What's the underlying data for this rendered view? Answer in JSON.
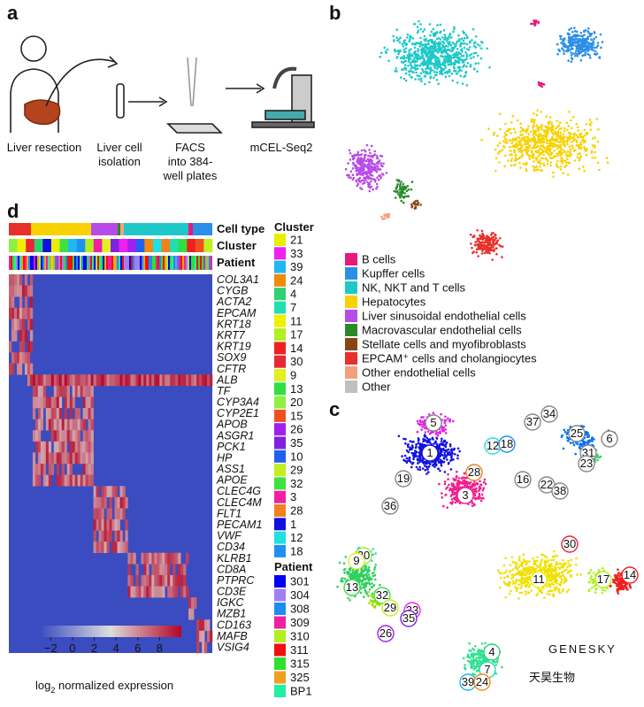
{
  "panels": {
    "a": "a",
    "b": "b",
    "c": "c",
    "d": "d"
  },
  "workflow": {
    "steps": [
      [
        "Liver resection"
      ],
      [
        "Liver cell",
        "isolation"
      ],
      [
        "FACS",
        "into 384-",
        "well plates"
      ],
      [
        "mCEL-Seq2"
      ]
    ]
  },
  "cell_type_legend": [
    {
      "label": "B cells",
      "color": "#e8197a"
    },
    {
      "label": "Kupffer cells",
      "color": "#2b8fe8"
    },
    {
      "label": "NK, NKT and T cells",
      "color": "#1ec8c8"
    },
    {
      "label": "Hepatocytes",
      "color": "#f7d200"
    },
    {
      "label": "Liver sinusoidal endothelial cells",
      "color": "#b84be8"
    },
    {
      "label": "Macrovascular endothelial cells",
      "color": "#2a8a2a"
    },
    {
      "label": "Stellate cells and myofibroblasts",
      "color": "#8b4513"
    },
    {
      "label": "EPCAM⁺ cells and cholangiocytes",
      "color": "#e8302a"
    },
    {
      "label": "Other endothelial cells",
      "color": "#f4a07c"
    },
    {
      "label": "Other",
      "color": "#c0c0c0"
    }
  ],
  "tsne_cluster_labels": [
    "5",
    "1",
    "12",
    "18",
    "28",
    "19",
    "3",
    "16",
    "22",
    "38",
    "36",
    "37",
    "34",
    "25",
    "6",
    "31",
    "23",
    "30",
    "11",
    "17",
    "14",
    "20",
    "9",
    "13",
    "32",
    "29",
    "33",
    "35",
    "26",
    "4",
    "7",
    "39",
    "24"
  ],
  "heatmap": {
    "row_headers": [
      "Cell type",
      "Cluster",
      "Patient"
    ],
    "genes": [
      "COL3A1",
      "CYGB",
      "ACTA2",
      "EPCAM",
      "KRT18",
      "KRT7",
      "KRT19",
      "SOX9",
      "CFTR",
      "ALB",
      "TF",
      "CYP3A4",
      "CYP2E1",
      "APOB",
      "ASGR1",
      "PCK1",
      "HP",
      "ASS1",
      "APOE",
      "CLEC4G",
      "CLEC4M",
      "FLT1",
      "PECAM1",
      "VWF",
      "CD34",
      "KLRB1",
      "CD8A",
      "PTPRC",
      "CD3E",
      "IGKC",
      "MZB1",
      "CD163",
      "MAFB",
      "VSIG4"
    ]
  },
  "cluster_legend": {
    "title": "Cluster",
    "items": [
      {
        "label": "21",
        "color": "#e8f000"
      },
      {
        "label": "33",
        "color": "#f020f0"
      },
      {
        "label": "39",
        "color": "#20b8f0"
      },
      {
        "label": "24",
        "color": "#f08a10"
      },
      {
        "label": "4",
        "color": "#30d070"
      },
      {
        "label": "7",
        "color": "#20e0b0"
      },
      {
        "label": "11",
        "color": "#f0f000"
      },
      {
        "label": "17",
        "color": "#b0f020"
      },
      {
        "label": "14",
        "color": "#f02020"
      },
      {
        "label": "30",
        "color": "#e82838"
      },
      {
        "label": "9",
        "color": "#e0f020"
      },
      {
        "label": "13",
        "color": "#30e040"
      },
      {
        "label": "20",
        "color": "#90f040"
      },
      {
        "label": "15",
        "color": "#f05020"
      },
      {
        "label": "26",
        "color": "#a020f0"
      },
      {
        "label": "35",
        "color": "#8020e0"
      },
      {
        "label": "10",
        "color": "#2060f0"
      },
      {
        "label": "29",
        "color": "#c0f020"
      },
      {
        "label": "32",
        "color": "#40e040"
      },
      {
        "label": "3",
        "color": "#f020a0"
      },
      {
        "label": "28",
        "color": "#f08020"
      },
      {
        "label": "1",
        "color": "#1010e0"
      },
      {
        "label": "12",
        "color": "#20e0e0"
      },
      {
        "label": "18",
        "color": "#2090f0"
      }
    ]
  },
  "patient_legend": {
    "title": "Patient",
    "items": [
      {
        "label": "301",
        "color": "#0000f0"
      },
      {
        "label": "304",
        "color": "#a080f0"
      },
      {
        "label": "308",
        "color": "#1e8cf0"
      },
      {
        "label": "309",
        "color": "#f020a0"
      },
      {
        "label": "310",
        "color": "#b0f020"
      },
      {
        "label": "311",
        "color": "#f01010"
      },
      {
        "label": "315",
        "color": "#30e030"
      },
      {
        "label": "325",
        "color": "#f0a020"
      },
      {
        "label": "BP1",
        "color": "#20f0a0"
      }
    ]
  },
  "colorbar": {
    "ticks": [
      {
        "value": -2,
        "label": "−2"
      },
      0,
      2,
      4,
      6,
      8
    ],
    "range": [
      -3,
      10
    ],
    "label": [
      "log",
      "2",
      " normalized expression"
    ]
  },
  "watermark": {
    "en": "GENESKY",
    "cn": "天昊生物"
  }
}
